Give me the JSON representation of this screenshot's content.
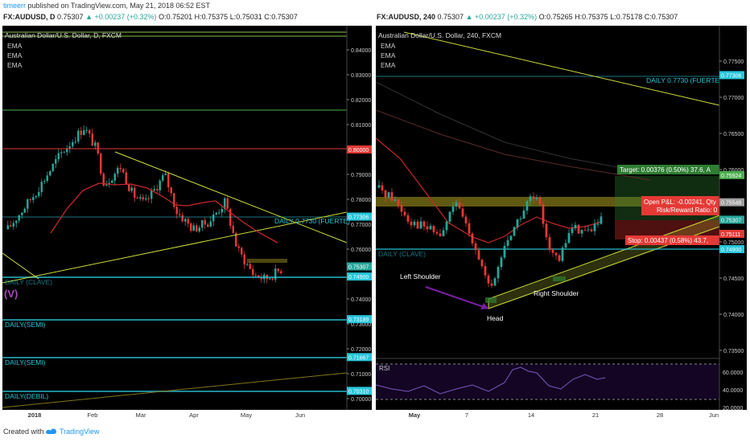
{
  "publish": {
    "user": "timeerr",
    "text": " published on TradingView.com, May 21, 2018 06:52 EST"
  },
  "footer": {
    "created": "Created with",
    "brand": "TradingView"
  },
  "left_chart": {
    "header": {
      "symbol": "FX:AUDUSD, D",
      "last": "0.75307",
      "change": "▲ +0.00237 (+0.32%)",
      "o": "O:0.75201",
      "h": "H:0.75375",
      "l": "L:0.75031",
      "c": "C:0.75307"
    },
    "title": "Australian Dollar/U.S. Dollar, D, FXCM",
    "indicators": [
      "EMA",
      "EMA",
      "EMA"
    ],
    "price_ticks": [
      "0.84000",
      "0.83000",
      "0.82000",
      "0.81000",
      "0.79000",
      "0.78000",
      "0.77000",
      "0.76000",
      "0.74000",
      "0.73000",
      "0.72000",
      "0.71000",
      "0.70000"
    ],
    "price_badges": [
      {
        "text": "0.80000",
        "color": "#e53935"
      },
      {
        "text": "0.77306",
        "color": "#26c6da"
      },
      {
        "text": "0.75307",
        "color": "#26a69a"
      },
      {
        "text": "0.74900",
        "color": "#26c6da"
      },
      {
        "text": "0.73189",
        "color": "#26c6da"
      },
      {
        "text": "0.71667",
        "color": "#26c6da"
      },
      {
        "text": "0.70310",
        "color": "#26c6da"
      }
    ],
    "x_ticks": [
      "2018",
      "Feb",
      "Mar",
      "Apr",
      "May",
      "Jun"
    ],
    "labels": [
      "DAILY 0.7730 (FUERTE)",
      "DAILY (CLAVE)",
      "(V)",
      "DAILY(SEMI)",
      "DAILY(SEMI)",
      "DAILY(DEBIL)"
    ]
  },
  "right_chart": {
    "header": {
      "symbol": "FX:AUDUSD, 240",
      "last": "0.75307",
      "change": "▲ +0.00237 (+0.32%)",
      "o": "O:0.75265",
      "h": "H:0.75375",
      "l": "L:0.75178",
      "c": "C:0.75307"
    },
    "title": "Australian Dollar/U.S. Dollar, 240, FXCM",
    "indicators": [
      "EMA",
      "EMA",
      "EMA"
    ],
    "price_ticks": [
      "0.77500",
      "0.77000",
      "0.76500",
      "0.76000",
      "0.75000",
      "0.74500",
      "0.74000",
      "0.73500"
    ],
    "price_badges": [
      {
        "text": "0.77306",
        "color": "#26c6da"
      },
      {
        "text": "0.75924",
        "color": "#4caf50"
      },
      {
        "text": "0.75548",
        "color": "#9e9e9e"
      },
      {
        "text": "0.75307",
        "color": "#26a69a"
      },
      {
        "text": "0.75111",
        "color": "#e53935"
      },
      {
        "text": "0.74900",
        "color": "#26c6da"
      }
    ],
    "x_ticks": [
      "May",
      "7",
      "14",
      "21",
      "28",
      "Jun"
    ],
    "labels": [
      "DAILY 0.7730 (FUERTE)",
      "DAILY (CLAVE)",
      "Left Shoulder",
      "Head",
      "Right Shoulder"
    ],
    "position": {
      "target": "Target: 0.00376 (0.50%) 37.6, A",
      "pnl": "Open P&L: -0.00241, Qty",
      "rr": "Risk/Reward Ratio: 0",
      "stop": "Stop: 0.00437 (0.58%) 43.7,"
    },
    "rsi": {
      "label": "RSI",
      "ticks": [
        "60.0000",
        "40.0000",
        "20.0000"
      ]
    }
  },
  "chart_data": [
    {
      "type": "line",
      "title": "Australian Dollar/U.S. Dollar, D, FXCM",
      "x": [
        "2018",
        "Feb",
        "Mar",
        "Apr",
        "May",
        "Jun"
      ],
      "ylim": [
        0.697,
        0.856
      ],
      "series": [
        {
          "values": [
            0.785,
            0.809,
            0.786,
            0.776,
            0.75,
            0.753
          ]
        }
      ],
      "last_price": 0.75307,
      "levels": [
        0.8,
        0.77306,
        0.749,
        0.73189,
        0.71667,
        0.7031
      ],
      "grid": false,
      "legend": "none"
    },
    {
      "type": "line",
      "title": "Australian Dollar/U.S. Dollar, 240, FXCM",
      "x": [
        "May",
        "7",
        "14",
        "21",
        "28",
        "Jun"
      ],
      "ylim": [
        0.732,
        0.779
      ],
      "series": [
        {
          "values": [
            0.757,
            0.749,
            0.742,
            0.756,
            0.749,
            0.753
          ]
        }
      ],
      "last_price": 0.75307,
      "levels": [
        0.77306,
        0.75924,
        0.75548,
        0.75111,
        0.749
      ],
      "rsi": {
        "ylim": [
          20,
          70
        ],
        "bands": [
          60,
          40
        ]
      },
      "grid": false,
      "legend": "none"
    }
  ]
}
